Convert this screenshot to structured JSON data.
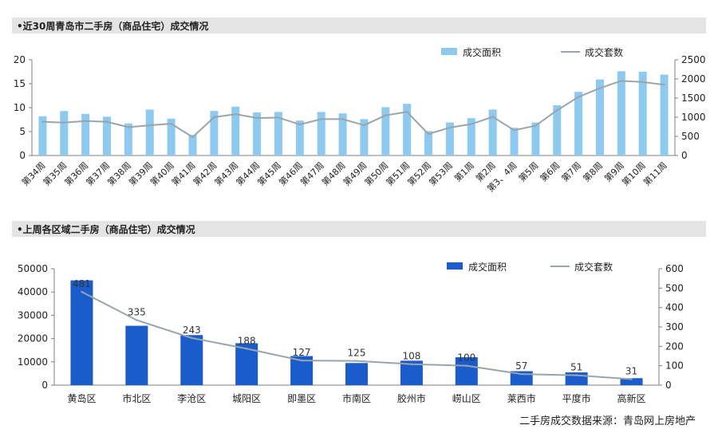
{
  "chart_data": [
    {
      "type": "bar",
      "title": "•近30周青岛市二手房（商品住宅）成交情况",
      "categories": [
        "第34周",
        "第35周",
        "第36周",
        "第37周",
        "第38周",
        "第39周",
        "第40周",
        "第41周",
        "第42周",
        "第43周",
        "第44周",
        "第45周",
        "第46周",
        "第47周",
        "第48周",
        "第49周",
        "第50周",
        "第51周",
        "第52周",
        "第53周",
        "第1周",
        "第2周",
        "第3、4周",
        "第5周",
        "第6周",
        "第7周",
        "第8周",
        "第9周",
        "第10周",
        "第11周"
      ],
      "series": [
        {
          "name": "成交面积",
          "type": "bar",
          "axis": "left",
          "color": "#8ec9f0",
          "values": [
            8.2,
            9.3,
            8.7,
            8.1,
            6.7,
            9.6,
            7.7,
            4.3,
            9.3,
            10.2,
            9.0,
            9.1,
            7.3,
            9.1,
            8.8,
            7.6,
            10.1,
            10.8,
            5.1,
            6.9,
            7.8,
            9.6,
            5.8,
            6.9,
            10.5,
            13.3,
            15.9,
            17.6,
            17.5,
            16.9
          ]
        },
        {
          "name": "成交套数",
          "type": "line",
          "axis": "right",
          "color": "#9aa5aa",
          "values": [
            880,
            860,
            900,
            880,
            740,
            790,
            830,
            480,
            1000,
            1080,
            980,
            990,
            810,
            950,
            950,
            790,
            1050,
            1140,
            560,
            730,
            820,
            1010,
            660,
            780,
            1180,
            1530,
            1760,
            1950,
            1920,
            1850
          ]
        }
      ],
      "yleft": {
        "ylim": [
          0,
          20
        ],
        "ticks": [
          "0",
          "5",
          "10",
          "15",
          "20"
        ]
      },
      "yright": {
        "ylim": [
          0,
          2500
        ],
        "ticks": [
          "0",
          "500",
          "1000",
          "1500",
          "2000",
          "2500"
        ]
      },
      "legend": {
        "placement": "top-right"
      }
    },
    {
      "type": "bar",
      "title": "•上周各区域二手房（商品住宅）成交情况",
      "categories": [
        "黄岛区",
        "市北区",
        "李沧区",
        "城阳区",
        "即墨区",
        "市南区",
        "胶州市",
        "崂山区",
        "莱西市",
        "平度市",
        "高新区"
      ],
      "series": [
        {
          "name": "成交面积",
          "type": "bar",
          "axis": "left",
          "color": "#1a5ccc",
          "values": [
            45000,
            25500,
            21500,
            18000,
            12500,
            9500,
            10500,
            12000,
            6000,
            5500,
            3000
          ]
        },
        {
          "name": "成交套数",
          "type": "line",
          "axis": "right",
          "color": "#9aa5aa",
          "values": [
            481,
            335,
            243,
            188,
            127,
            125,
            108,
            100,
            57,
            51,
            31
          ],
          "labels": [
            "481",
            "335",
            "243",
            "188",
            "127",
            "125",
            "108",
            "100",
            "57",
            "51",
            "31"
          ]
        }
      ],
      "yleft": {
        "ylim": [
          0,
          50000
        ],
        "ticks": [
          "0",
          "10000",
          "20000",
          "30000",
          "40000",
          "50000"
        ]
      },
      "yright": {
        "ylim": [
          0,
          600
        ],
        "ticks": [
          "0",
          "100",
          "200",
          "300",
          "400",
          "500",
          "600"
        ]
      },
      "legend": {
        "placement": "top-right"
      }
    }
  ],
  "source_note": "二手房成交数据来源：青岛网上房地产"
}
